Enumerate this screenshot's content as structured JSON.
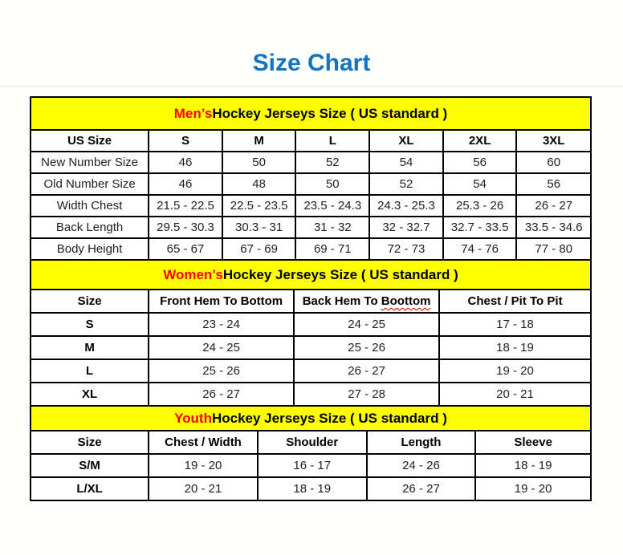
{
  "title": "Size Chart",
  "colors": {
    "title": "#1273BE",
    "band_bg": "#FFFF00",
    "band_highlight": "#FF0000",
    "border": "#000000",
    "spellcheck_underline": "#C00000"
  },
  "sections": [
    {
      "id": "mens",
      "band_highlight": "Men’s",
      "band_rest": " Hockey Jerseys Size ( US standard )",
      "label_bold": false,
      "col_widths": [
        "21%",
        "13.17%",
        "13.17%",
        "13.17%",
        "13.17%",
        "13.17%",
        "13.15%"
      ],
      "columns": [
        {
          "label": "US Size"
        },
        {
          "label": "S"
        },
        {
          "label": "M"
        },
        {
          "label": "L"
        },
        {
          "label": "XL"
        },
        {
          "label": "2XL"
        },
        {
          "label": "3XL"
        }
      ],
      "rows": [
        {
          "label": "New Number Size",
          "values": [
            "46",
            "50",
            "52",
            "54",
            "56",
            "60"
          ]
        },
        {
          "label": "Old Number Size",
          "values": [
            "46",
            "48",
            "50",
            "52",
            "54",
            "56"
          ]
        },
        {
          "label": "Width Chest",
          "values": [
            "21.5 - 22.5",
            "22.5 - 23.5",
            "23.5 - 24.3",
            "24.3 - 25.3",
            "25.3 - 26",
            "26 - 27"
          ]
        },
        {
          "label": "Back Length",
          "values": [
            "29.5 - 30.3",
            "30.3 - 31",
            "31 - 32",
            "32 - 32.7",
            "32.7 - 33.5",
            "33.5 - 34.6"
          ]
        },
        {
          "label": "Body Height",
          "values": [
            "65 - 67",
            "67 - 69",
            "69 - 71",
            "72 - 73",
            "74 - 76",
            "77 - 80"
          ]
        }
      ]
    },
    {
      "id": "womens",
      "band_highlight": "Women’s",
      "band_rest": " Hockey Jerseys Size ( US standard )",
      "label_bold": true,
      "col_widths": [
        "21%",
        "26%",
        "26%",
        "27%"
      ],
      "columns": [
        {
          "label": "Size"
        },
        {
          "label": "Front Hem To Bottom"
        },
        {
          "label": "Back Hem To Boottom",
          "wavy": "Boottom"
        },
        {
          "label": "Chest / Pit To Pit"
        }
      ],
      "rows": [
        {
          "label": "S",
          "values": [
            "23 - 24",
            "24 - 25",
            "17 - 18"
          ]
        },
        {
          "label": "M",
          "values": [
            "24 - 25",
            "25 - 26",
            "18 - 19"
          ]
        },
        {
          "label": "L",
          "values": [
            "25 - 26",
            "26 - 27",
            "19 - 20"
          ]
        },
        {
          "label": "XL",
          "values": [
            "26 - 27",
            "27 - 28",
            "20 - 21"
          ]
        }
      ]
    },
    {
      "id": "youth",
      "band_highlight": "Youth",
      "band_rest": " Hockey Jerseys Size ( US standard )",
      "label_bold": true,
      "col_widths": [
        "21%",
        "19.5%",
        "19.5%",
        "19.5%",
        "20.5%"
      ],
      "columns": [
        {
          "label": "Size"
        },
        {
          "label": "Chest / Width"
        },
        {
          "label": "Shoulder"
        },
        {
          "label": "Length"
        },
        {
          "label": "Sleeve"
        }
      ],
      "rows": [
        {
          "label": "S/M",
          "values": [
            "19 - 20",
            "16 - 17",
            "24 - 26",
            "18 - 19"
          ]
        },
        {
          "label": "L/XL",
          "values": [
            "20 - 21",
            "18 - 19",
            "26 - 27",
            "19 - 20"
          ]
        }
      ]
    }
  ]
}
